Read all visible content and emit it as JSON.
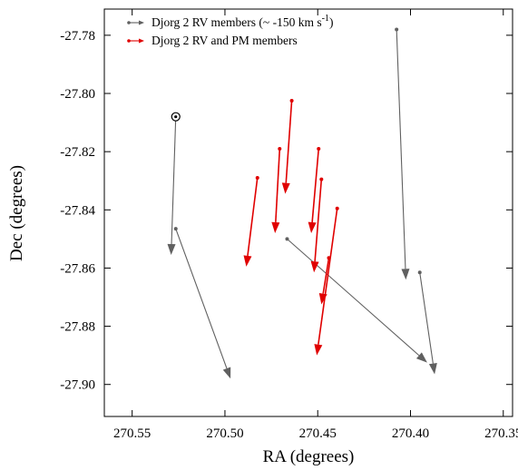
{
  "chart_data": {
    "type": "scatter",
    "xlabel": "RA (degrees)",
    "ylabel": "Dec (degrees)",
    "xlim": [
      270.565,
      270.345
    ],
    "ylim": [
      -27.911,
      -27.771
    ],
    "x_ticks": [
      270.55,
      270.5,
      270.45,
      270.4,
      270.35
    ],
    "x_tick_labels": [
      "270.55",
      "270.50",
      "270.45",
      "270.40",
      "270.35"
    ],
    "y_ticks": [
      -27.78,
      -27.8,
      -27.82,
      -27.84,
      -27.86,
      -27.88,
      -27.9
    ],
    "y_tick_labels": [
      "-27.78",
      "-27.80",
      "-27.82",
      "-27.84",
      "-27.86",
      "-27.88",
      "-27.90"
    ],
    "grid": false,
    "legend_position": "top-left",
    "marker": {
      "name": "cluster-center-marker",
      "x": 270.5265,
      "y": -27.808
    },
    "series": [
      {
        "name": "Djorg 2 RV members (~ -150 km s-1)",
        "name_base": "Djorg 2 RV members (~ -150 km s",
        "name_sup": "-1",
        "name_tail": ")",
        "color": "#606060",
        "vectors": [
          {
            "x0": 270.5265,
            "y0": -27.808,
            "x1": 270.529,
            "y1": -27.8555
          },
          {
            "x0": 270.5265,
            "y0": -27.8465,
            "x1": 270.497,
            "y1": -27.898
          },
          {
            "x0": 270.4665,
            "y0": -27.85,
            "x1": 270.391,
            "y1": -27.8925
          },
          {
            "x0": 270.4075,
            "y0": -27.778,
            "x1": 270.4025,
            "y1": -27.864
          },
          {
            "x0": 270.395,
            "y0": -27.8615,
            "x1": 270.387,
            "y1": -27.8965
          }
        ]
      },
      {
        "name": "Djorg 2 RV and PM members",
        "color": "#e00000",
        "vectors": [
          {
            "x0": 270.4825,
            "y0": -27.829,
            "x1": 270.4885,
            "y1": -27.8595
          },
          {
            "x0": 270.4705,
            "y0": -27.819,
            "x1": 270.473,
            "y1": -27.848
          },
          {
            "x0": 270.464,
            "y0": -27.8025,
            "x1": 270.4675,
            "y1": -27.8345
          },
          {
            "x0": 270.4495,
            "y0": -27.819,
            "x1": 270.4535,
            "y1": -27.848
          },
          {
            "x0": 270.448,
            "y0": -27.8295,
            "x1": 270.452,
            "y1": -27.8615
          },
          {
            "x0": 270.444,
            "y0": -27.8565,
            "x1": 270.448,
            "y1": -27.8725
          },
          {
            "x0": 270.4395,
            "y0": -27.8395,
            "x1": 270.4505,
            "y1": -27.89
          }
        ]
      }
    ]
  }
}
